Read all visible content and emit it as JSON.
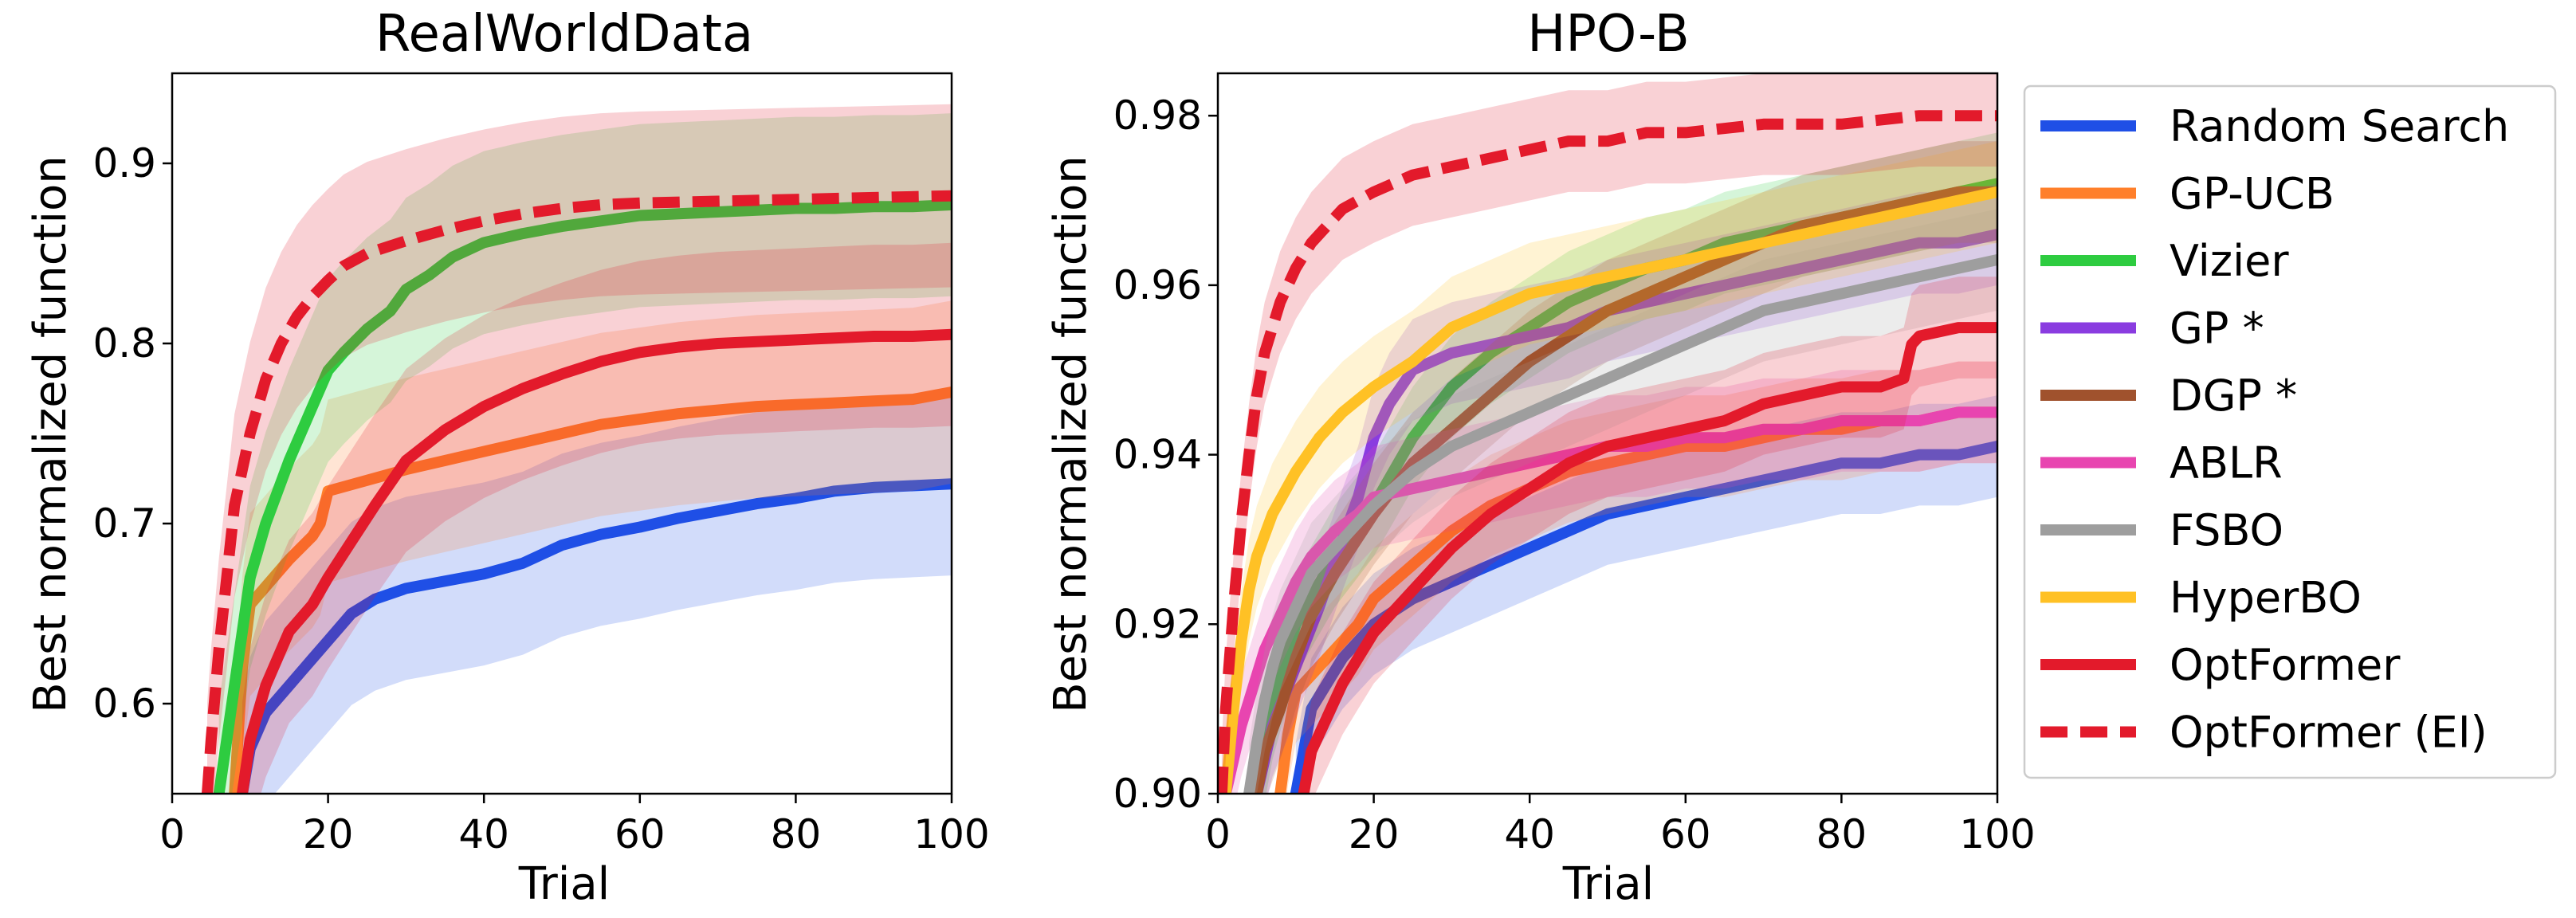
{
  "chart_data": [
    {
      "type": "line",
      "title": "RealWorldData",
      "xlabel": "Trial",
      "ylabel": "Best normalized function",
      "xlim": [
        0,
        100
      ],
      "ylim": [
        0.55,
        0.95
      ],
      "xticks": [
        "0",
        "20",
        "40",
        "60",
        "80",
        "100"
      ],
      "yticks": [
        "0.6",
        "0.7",
        "0.8",
        "0.9"
      ],
      "series": [
        {
          "name": "Random Search",
          "color": "#1f4fe6",
          "dashed": false,
          "x": [
            9,
            10,
            12,
            15,
            18,
            20,
            23,
            26,
            30,
            35,
            40,
            45,
            50,
            55,
            60,
            65,
            70,
            75,
            80,
            85,
            90,
            95,
            100
          ],
          "y": [
            0.55,
            0.575,
            0.595,
            0.61,
            0.625,
            0.635,
            0.65,
            0.658,
            0.664,
            0.668,
            0.672,
            0.678,
            0.688,
            0.694,
            0.698,
            0.703,
            0.707,
            0.711,
            0.714,
            0.718,
            0.72,
            0.721,
            0.722
          ]
        },
        {
          "name": "GP-UCB",
          "color": "#ff7f2a",
          "dashed": false,
          "x": [
            8,
            9,
            10,
            12,
            15,
            18,
            19,
            20,
            25,
            30,
            35,
            40,
            45,
            50,
            55,
            60,
            65,
            70,
            75,
            80,
            85,
            90,
            95,
            100
          ],
          "y": [
            0.55,
            0.62,
            0.655,
            0.665,
            0.68,
            0.693,
            0.7,
            0.718,
            0.724,
            0.73,
            0.735,
            0.74,
            0.745,
            0.75,
            0.755,
            0.758,
            0.761,
            0.763,
            0.765,
            0.766,
            0.767,
            0.768,
            0.769,
            0.773
          ]
        },
        {
          "name": "Vizier",
          "color": "#2ecc40",
          "dashed": false,
          "x": [
            6,
            7,
            8,
            9,
            10,
            12,
            15,
            18,
            20,
            22,
            25,
            28,
            30,
            33,
            36,
            40,
            45,
            50,
            55,
            60,
            65,
            70,
            75,
            80,
            85,
            90,
            95,
            100
          ],
          "y": [
            0.55,
            0.58,
            0.61,
            0.64,
            0.67,
            0.7,
            0.735,
            0.765,
            0.785,
            0.795,
            0.808,
            0.818,
            0.83,
            0.838,
            0.848,
            0.856,
            0.861,
            0.865,
            0.868,
            0.871,
            0.872,
            0.873,
            0.874,
            0.875,
            0.875,
            0.876,
            0.876,
            0.877
          ]
        },
        {
          "name": "OptFormer",
          "color": "#e31a2b",
          "dashed": false,
          "x": [
            9,
            10,
            12,
            15,
            18,
            20,
            23,
            26,
            30,
            35,
            40,
            45,
            50,
            55,
            60,
            65,
            70,
            75,
            80,
            85,
            90,
            95,
            100
          ],
          "y": [
            0.55,
            0.58,
            0.61,
            0.64,
            0.655,
            0.67,
            0.69,
            0.71,
            0.735,
            0.752,
            0.765,
            0.775,
            0.783,
            0.79,
            0.795,
            0.798,
            0.8,
            0.801,
            0.802,
            0.803,
            0.804,
            0.804,
            0.805
          ]
        },
        {
          "name": "OptFormer (EI)",
          "color": "#e31a2b",
          "dashed": true,
          "x": [
            4.5,
            5,
            6,
            7,
            8,
            9,
            10,
            12,
            14,
            16,
            18,
            20,
            22,
            25,
            30,
            35,
            40,
            45,
            50,
            55,
            60,
            70,
            80,
            90,
            100
          ],
          "y": [
            0.55,
            0.58,
            0.63,
            0.67,
            0.71,
            0.73,
            0.75,
            0.78,
            0.8,
            0.815,
            0.826,
            0.835,
            0.843,
            0.85,
            0.857,
            0.863,
            0.868,
            0.872,
            0.875,
            0.877,
            0.878,
            0.879,
            0.88,
            0.881,
            0.882
          ]
        }
      ]
    },
    {
      "type": "line",
      "title": "HPO-B",
      "xlabel": "Trial",
      "ylabel": "Best normalized function",
      "xlim": [
        0,
        100
      ],
      "ylim": [
        0.9,
        0.985
      ],
      "xticks": [
        "0",
        "20",
        "40",
        "60",
        "80",
        "100"
      ],
      "yticks": [
        "0.90",
        "0.92",
        "0.94",
        "0.96",
        "0.98"
      ],
      "series": [
        {
          "name": "Random Search",
          "color": "#1f4fe6",
          "dashed": false,
          "x": [
            10,
            11,
            12,
            14,
            16,
            18,
            20,
            25,
            30,
            35,
            40,
            45,
            50,
            55,
            60,
            65,
            70,
            75,
            80,
            85,
            90,
            95,
            100
          ],
          "y": [
            0.9,
            0.905,
            0.91,
            0.913,
            0.916,
            0.918,
            0.92,
            0.923,
            0.925,
            0.927,
            0.929,
            0.931,
            0.933,
            0.934,
            0.935,
            0.936,
            0.937,
            0.938,
            0.939,
            0.939,
            0.94,
            0.94,
            0.941
          ]
        },
        {
          "name": "GP-UCB",
          "color": "#ff7f2a",
          "dashed": false,
          "x": [
            8,
            9,
            10,
            12,
            14,
            16,
            18,
            20,
            25,
            30,
            35,
            40,
            45,
            50,
            55,
            60,
            65,
            70,
            75,
            80,
            85,
            90,
            95,
            100
          ],
          "y": [
            0.9,
            0.907,
            0.912,
            0.914,
            0.916,
            0.918,
            0.92,
            0.923,
            0.927,
            0.931,
            0.934,
            0.936,
            0.938,
            0.939,
            0.94,
            0.941,
            0.941,
            0.942,
            0.943,
            0.943,
            0.944,
            0.944,
            0.945,
            0.945
          ]
        },
        {
          "name": "Vizier",
          "color": "#2ecc40",
          "dashed": false,
          "x": [
            5,
            7,
            10,
            15,
            20,
            25,
            30,
            35,
            40,
            45,
            50,
            55,
            60,
            65,
            70,
            75,
            80,
            85,
            90,
            95,
            100
          ],
          "y": [
            0.9,
            0.91,
            0.92,
            0.928,
            0.934,
            0.942,
            0.948,
            0.952,
            0.955,
            0.958,
            0.96,
            0.962,
            0.963,
            0.965,
            0.966,
            0.967,
            0.968,
            0.969,
            0.97,
            0.971,
            0.972
          ]
        },
        {
          "name": "GP *",
          "color": "#8a3ce0",
          "dashed": false,
          "x": [
            5,
            7,
            10,
            13,
            16,
            18,
            20,
            22,
            25,
            30,
            35,
            40,
            45,
            50,
            55,
            60,
            65,
            70,
            75,
            80,
            85,
            90,
            95,
            100
          ],
          "y": [
            0.9,
            0.908,
            0.915,
            0.922,
            0.93,
            0.935,
            0.942,
            0.946,
            0.95,
            0.952,
            0.953,
            0.954,
            0.955,
            0.957,
            0.958,
            0.959,
            0.96,
            0.961,
            0.962,
            0.963,
            0.964,
            0.965,
            0.965,
            0.966
          ]
        },
        {
          "name": "DGP *",
          "color": "#a0522d",
          "dashed": false,
          "x": [
            5,
            6,
            8,
            10,
            12,
            15,
            20,
            25,
            30,
            35,
            40,
            45,
            50,
            55,
            60,
            65,
            70,
            75,
            80,
            85,
            90,
            95,
            100
          ],
          "y": [
            0.9,
            0.905,
            0.91,
            0.916,
            0.921,
            0.926,
            0.933,
            0.939,
            0.943,
            0.947,
            0.951,
            0.954,
            0.957,
            0.959,
            0.961,
            0.963,
            0.965,
            0.967,
            0.968,
            0.969,
            0.97,
            0.971,
            0.971
          ]
        },
        {
          "name": "ABLR",
          "color": "#e845b0",
          "dashed": false,
          "x": [
            1,
            2,
            3,
            4,
            5,
            6,
            7,
            8,
            10,
            12,
            15,
            18,
            20,
            25,
            30,
            35,
            40,
            45,
            50,
            55,
            60,
            65,
            70,
            75,
            80,
            85,
            90,
            95,
            100
          ],
          "y": [
            0.9,
            0.904,
            0.908,
            0.911,
            0.914,
            0.917,
            0.919,
            0.921,
            0.925,
            0.928,
            0.931,
            0.933,
            0.935,
            0.936,
            0.937,
            0.938,
            0.939,
            0.94,
            0.941,
            0.941,
            0.942,
            0.942,
            0.943,
            0.943,
            0.944,
            0.944,
            0.944,
            0.945,
            0.945
          ]
        },
        {
          "name": "FSBO",
          "color": "#9e9e9e",
          "dashed": false,
          "x": [
            4,
            5,
            6,
            7,
            8,
            10,
            12,
            15,
            18,
            20,
            25,
            30,
            35,
            40,
            45,
            50,
            55,
            60,
            65,
            70,
            75,
            80,
            85,
            90,
            95,
            100
          ],
          "y": [
            0.9,
            0.906,
            0.911,
            0.915,
            0.918,
            0.922,
            0.926,
            0.929,
            0.932,
            0.934,
            0.938,
            0.941,
            0.943,
            0.945,
            0.947,
            0.949,
            0.951,
            0.953,
            0.955,
            0.957,
            0.958,
            0.959,
            0.96,
            0.961,
            0.962,
            0.963
          ]
        },
        {
          "name": "HyperBO",
          "color": "#ffc125",
          "dashed": false,
          "x": [
            1,
            2,
            3,
            4,
            5,
            7,
            10,
            13,
            16,
            20,
            25,
            30,
            35,
            40,
            45,
            50,
            55,
            60,
            65,
            70,
            75,
            80,
            85,
            90,
            95,
            100
          ],
          "y": [
            0.9,
            0.91,
            0.918,
            0.924,
            0.928,
            0.933,
            0.938,
            0.942,
            0.945,
            0.948,
            0.951,
            0.955,
            0.957,
            0.959,
            0.96,
            0.961,
            0.962,
            0.963,
            0.964,
            0.965,
            0.966,
            0.967,
            0.968,
            0.969,
            0.97,
            0.971
          ]
        },
        {
          "name": "OptFormer",
          "color": "#e31a2b",
          "dashed": false,
          "x": [
            11,
            12,
            14,
            16,
            18,
            20,
            25,
            30,
            35,
            40,
            45,
            50,
            55,
            60,
            65,
            70,
            75,
            80,
            85,
            88,
            89,
            90,
            95,
            100
          ],
          "y": [
            0.9,
            0.905,
            0.909,
            0.913,
            0.916,
            0.919,
            0.924,
            0.929,
            0.933,
            0.936,
            0.939,
            0.941,
            0.942,
            0.943,
            0.944,
            0.946,
            0.947,
            0.948,
            0.948,
            0.949,
            0.953,
            0.954,
            0.955,
            0.955
          ]
        },
        {
          "name": "OptFormer (EI)",
          "color": "#e31a2b",
          "dashed": true,
          "x": [
            0.5,
            1,
            2,
            3,
            4,
            5,
            6,
            8,
            10,
            12,
            14,
            16,
            18,
            20,
            25,
            30,
            35,
            40,
            45,
            50,
            55,
            60,
            70,
            80,
            90,
            100
          ],
          "y": [
            0.9,
            0.91,
            0.922,
            0.932,
            0.94,
            0.947,
            0.952,
            0.958,
            0.962,
            0.965,
            0.967,
            0.969,
            0.97,
            0.971,
            0.973,
            0.974,
            0.975,
            0.976,
            0.977,
            0.977,
            0.978,
            0.978,
            0.979,
            0.979,
            0.98,
            0.98
          ]
        }
      ]
    }
  ],
  "legend": {
    "placement": "right",
    "items": [
      {
        "label": "Random Search",
        "color": "#1f4fe6",
        "dashed": false
      },
      {
        "label": "GP-UCB",
        "color": "#ff7f2a",
        "dashed": false
      },
      {
        "label": "Vizier",
        "color": "#2ecc40",
        "dashed": false
      },
      {
        "label": "GP *",
        "color": "#8a3ce0",
        "dashed": false
      },
      {
        "label": "DGP *",
        "color": "#a0522d",
        "dashed": false
      },
      {
        "label": "ABLR",
        "color": "#e845b0",
        "dashed": false
      },
      {
        "label": "FSBO",
        "color": "#9e9e9e",
        "dashed": false
      },
      {
        "label": "HyperBO",
        "color": "#ffc125",
        "dashed": false
      },
      {
        "label": "OptFormer",
        "color": "#e31a2b",
        "dashed": false
      },
      {
        "label": "OptFormer (EI)",
        "color": "#e31a2b",
        "dashed": true
      }
    ]
  }
}
